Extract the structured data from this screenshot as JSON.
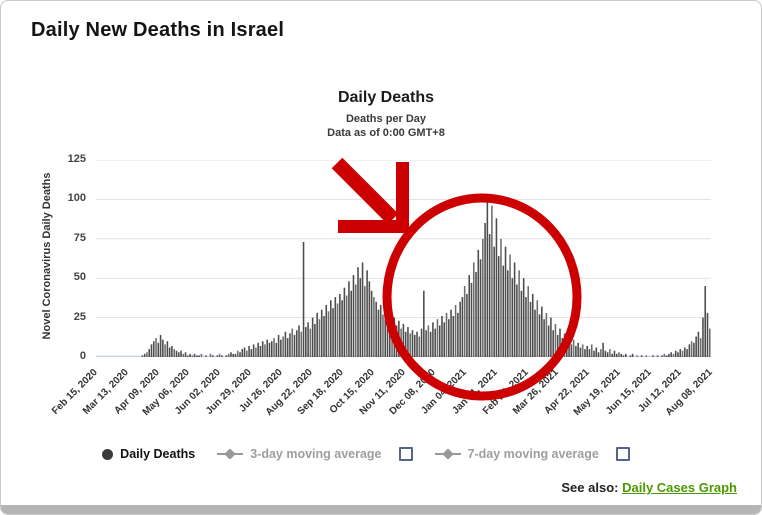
{
  "header": {
    "title": "Daily New Deaths in Israel"
  },
  "chart_data": {
    "type": "bar",
    "title": "Daily Deaths",
    "subtitle_lines": [
      "Deaths per Day",
      "Data as of 0:00 GMT+8"
    ],
    "ylabel": "Novel Coronavirus Daily Deaths",
    "ylim": [
      0,
      125
    ],
    "y_ticks": [
      0,
      25,
      50,
      75,
      100,
      125
    ],
    "grid": true,
    "grid_color": "#e1e1e1",
    "axis_line_color": "#ccd6eb",
    "bar_color": "#4c4c4c",
    "bar_color_alt": "#6e6e6e",
    "x_start": "Feb 15, 2020",
    "x_end": "Aug 08, 2021",
    "x_tick_labels": [
      "Feb 15, 2020",
      "Mar 13, 2020",
      "Apr 09, 2020",
      "May 06, 2020",
      "Jun 02, 2020",
      "Jun 29, 2020",
      "Jul 26, 2020",
      "Aug 22, 2020",
      "Sep 18, 2020",
      "Oct 15, 2020",
      "Nov 11, 2020",
      "Dec 08, 2020",
      "Jan 04, 2021",
      "Jan 31, 2021",
      "Feb 27, 2021",
      "Mar 26, 2021",
      "Apr 22, 2021",
      "May 19, 2021",
      "Jun 15, 2021",
      "Jul 12, 2021",
      "Aug 08, 2021"
    ],
    "sample_interval_days": 2,
    "values": [
      0,
      0,
      0,
      0,
      0,
      0,
      0,
      0,
      0,
      0,
      0,
      0,
      0,
      0,
      0,
      0,
      0,
      0,
      0,
      0,
      1,
      2,
      3,
      5,
      8,
      10,
      12,
      9,
      14,
      11,
      8,
      10,
      6,
      7,
      5,
      4,
      3,
      4,
      2,
      3,
      1,
      2,
      1,
      2,
      1,
      1,
      2,
      0,
      1,
      0,
      2,
      1,
      0,
      1,
      2,
      1,
      0,
      1,
      2,
      3,
      2,
      2,
      4,
      3,
      5,
      6,
      4,
      7,
      5,
      8,
      6,
      9,
      7,
      10,
      8,
      11,
      9,
      10,
      12,
      9,
      14,
      11,
      13,
      16,
      12,
      15,
      18,
      14,
      17,
      20,
      16,
      73,
      19,
      22,
      18,
      25,
      21,
      28,
      24,
      30,
      26,
      33,
      29,
      36,
      31,
      38,
      34,
      40,
      36,
      44,
      39,
      48,
      42,
      52,
      46,
      57,
      50,
      60,
      45,
      55,
      48,
      42,
      38,
      35,
      30,
      33,
      27,
      30,
      25,
      28,
      22,
      25,
      20,
      23,
      18,
      21,
      16,
      19,
      15,
      17,
      14,
      16,
      13,
      18,
      42,
      17,
      20,
      16,
      22,
      18,
      24,
      20,
      26,
      22,
      28,
      24,
      30,
      26,
      33,
      28,
      35,
      38,
      45,
      40,
      52,
      47,
      60,
      54,
      68,
      62,
      75,
      85,
      99,
      78,
      96,
      70,
      88,
      64,
      75,
      58,
      70,
      55,
      65,
      50,
      60,
      46,
      55,
      42,
      50,
      38,
      45,
      35,
      40,
      30,
      36,
      27,
      32,
      24,
      28,
      20,
      25,
      17,
      21,
      14,
      18,
      12,
      15,
      10,
      13,
      8,
      11,
      7,
      9,
      6,
      8,
      5,
      7,
      5,
      8,
      4,
      6,
      3,
      5,
      9,
      4,
      3,
      5,
      2,
      4,
      2,
      3,
      2,
      1,
      2,
      0,
      1,
      2,
      0,
      1,
      0,
      1,
      0,
      1,
      0,
      0,
      1,
      0,
      1,
      0,
      1,
      2,
      1,
      2,
      3,
      2,
      4,
      3,
      5,
      4,
      6,
      5,
      8,
      10,
      9,
      13,
      16,
      12,
      25,
      45,
      28,
      18
    ]
  },
  "annotation": {
    "color": "#cc0000",
    "shapes": [
      "arrow-down-right",
      "circle-highlight"
    ]
  },
  "legend": {
    "checkbox_border": "#56648a",
    "items": [
      {
        "label": "Daily Deaths",
        "marker": "circle",
        "marker_color": "#3a3a3a",
        "active": true,
        "checkbox": false
      },
      {
        "label": "3-day moving average",
        "marker": "line-diamond",
        "marker_color": "#999999",
        "active": false,
        "checkbox": true,
        "checkbox_checked": false
      },
      {
        "label": "7-day moving average",
        "marker": "line-diamond",
        "marker_color": "#999999",
        "active": false,
        "checkbox": true,
        "checkbox_checked": false
      }
    ]
  },
  "footer": {
    "see_also_label": "See also:",
    "link_text": "Daily Cases Graph",
    "link_color": "#4c9a00"
  }
}
